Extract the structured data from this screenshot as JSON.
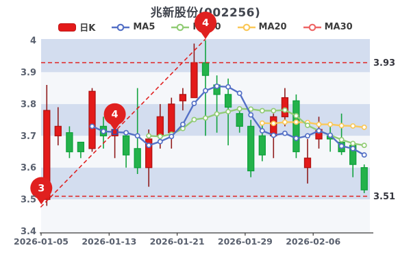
{
  "title": "兆新股份(002256)",
  "legend": {
    "items": [
      {
        "label": "日K",
        "type": "rect",
        "color": "#e31a1a"
      },
      {
        "label": "MA5",
        "type": "line",
        "color": "#5470c6"
      },
      {
        "label": "MA10",
        "type": "line",
        "color": "#91cc75"
      },
      {
        "label": "MA20",
        "type": "line",
        "color": "#fac858"
      },
      {
        "label": "MA30",
        "type": "line",
        "color": "#ee6666"
      }
    ]
  },
  "y_axis": {
    "ticks": [
      {
        "value": 4.0,
        "label": "4"
      },
      {
        "value": 3.9,
        "label": "3.9"
      },
      {
        "value": 3.8,
        "label": "3.8"
      },
      {
        "value": 3.7,
        "label": "3.7"
      },
      {
        "value": 3.6,
        "label": "3.6"
      },
      {
        "value": 3.5,
        "label": "3.5"
      },
      {
        "value": 3.4,
        "label": "3.4"
      }
    ]
  },
  "x_axis": {
    "ticks": [
      {
        "index": 0,
        "label": "2026-01-05"
      },
      {
        "index": 6,
        "label": "2026-01-13"
      },
      {
        "index": 12,
        "label": "2026-01-21"
      },
      {
        "index": 18,
        "label": "2026-01-29"
      },
      {
        "index": 24,
        "label": "2026-02-06"
      }
    ]
  },
  "chart_data": {
    "type": "candlestick",
    "title": "兆新股份(002256)",
    "ylim": [
      3.4,
      4.0
    ],
    "grid": {
      "split_band_values": [
        3.9,
        3.8,
        3.7,
        3.6,
        3.5
      ]
    },
    "dates": [
      "2026-01-05",
      "2026-01-06",
      "2026-01-07",
      "2026-01-08",
      "2026-01-09",
      "2026-01-12",
      "2026-01-13",
      "2026-01-14",
      "2026-01-15",
      "2026-01-16",
      "2026-01-19",
      "2026-01-20",
      "2026-01-21",
      "2026-01-22",
      "2026-01-23",
      "2026-01-26",
      "2026-01-27",
      "2026-01-28",
      "2026-01-29",
      "2026-01-30",
      "2026-02-02",
      "2026-02-03",
      "2026-02-04",
      "2026-02-05",
      "2026-02-06",
      "2026-02-09",
      "2026-02-10",
      "2026-02-11",
      "2026-02-12"
    ],
    "candles": [
      {
        "date": "2026-01-05",
        "open": 3.5,
        "close": 3.78,
        "high": 3.86,
        "low": 3.48,
        "dir": "up"
      },
      {
        "date": "2026-01-06",
        "open": 3.7,
        "close": 3.73,
        "high": 3.79,
        "low": 3.67,
        "dir": "up"
      },
      {
        "date": "2026-01-07",
        "open": 3.71,
        "close": 3.65,
        "high": 3.73,
        "low": 3.63,
        "dir": "down"
      },
      {
        "date": "2026-01-08",
        "open": 3.68,
        "close": 3.65,
        "high": 3.68,
        "low": 3.63,
        "dir": "down"
      },
      {
        "date": "2026-01-09",
        "open": 3.66,
        "close": 3.84,
        "high": 3.85,
        "low": 3.65,
        "dir": "up"
      },
      {
        "date": "2026-01-12",
        "open": 3.73,
        "close": 3.7,
        "high": 3.76,
        "low": 3.66,
        "dir": "down"
      },
      {
        "date": "2026-01-13",
        "open": 3.7,
        "close": 3.72,
        "high": 3.73,
        "low": 3.63,
        "dir": "up"
      },
      {
        "date": "2026-01-14",
        "open": 3.7,
        "close": 3.64,
        "high": 3.7,
        "low": 3.6,
        "dir": "down"
      },
      {
        "date": "2026-01-15",
        "open": 3.66,
        "close": 3.6,
        "high": 3.85,
        "low": 3.58,
        "dir": "down"
      },
      {
        "date": "2026-01-16",
        "open": 3.6,
        "close": 3.69,
        "high": 3.72,
        "low": 3.54,
        "dir": "up"
      },
      {
        "date": "2026-01-19",
        "open": 3.7,
        "close": 3.76,
        "high": 3.8,
        "low": 3.66,
        "dir": "up"
      },
      {
        "date": "2026-01-20",
        "open": 3.71,
        "close": 3.8,
        "high": 3.82,
        "low": 3.66,
        "dir": "up"
      },
      {
        "date": "2026-01-21",
        "open": 3.81,
        "close": 3.83,
        "high": 3.85,
        "low": 3.78,
        "dir": "up"
      },
      {
        "date": "2026-01-22",
        "open": 3.82,
        "close": 3.93,
        "high": 3.99,
        "low": 3.82,
        "dir": "up"
      },
      {
        "date": "2026-01-23",
        "open": 3.93,
        "close": 3.89,
        "high": 4.0,
        "low": 3.7,
        "dir": "down"
      },
      {
        "date": "2026-01-26",
        "open": 3.86,
        "close": 3.83,
        "high": 3.89,
        "low": 3.71,
        "dir": "down"
      },
      {
        "date": "2026-01-27",
        "open": 3.83,
        "close": 3.79,
        "high": 3.88,
        "low": 3.67,
        "dir": "down"
      },
      {
        "date": "2026-01-28",
        "open": 3.77,
        "close": 3.73,
        "high": 3.79,
        "low": 3.71,
        "dir": "down"
      },
      {
        "date": "2026-01-29",
        "open": 3.73,
        "close": 3.59,
        "high": 3.75,
        "low": 3.57,
        "dir": "down"
      },
      {
        "date": "2026-01-30",
        "open": 3.7,
        "close": 3.64,
        "high": 3.74,
        "low": 3.62,
        "dir": "down"
      },
      {
        "date": "2026-02-02",
        "open": 3.7,
        "close": 3.76,
        "high": 3.77,
        "low": 3.63,
        "dir": "up"
      },
      {
        "date": "2026-02-03",
        "open": 3.76,
        "close": 3.82,
        "high": 3.85,
        "low": 3.73,
        "dir": "up"
      },
      {
        "date": "2026-02-04",
        "open": 3.81,
        "close": 3.65,
        "high": 3.83,
        "low": 3.63,
        "dir": "down"
      },
      {
        "date": "2026-02-05",
        "open": 3.6,
        "close": 3.63,
        "high": 3.69,
        "low": 3.55,
        "dir": "up"
      },
      {
        "date": "2026-02-06",
        "open": 3.69,
        "close": 3.72,
        "high": 3.76,
        "low": 3.66,
        "dir": "up"
      },
      {
        "date": "2026-02-09",
        "open": 3.7,
        "close": 3.69,
        "high": 3.74,
        "low": 3.65,
        "dir": "down"
      },
      {
        "date": "2026-02-10",
        "open": 3.68,
        "close": 3.65,
        "high": 3.77,
        "low": 3.64,
        "dir": "down"
      },
      {
        "date": "2026-02-11",
        "open": 3.67,
        "close": 3.61,
        "high": 3.68,
        "low": 3.57,
        "dir": "down"
      },
      {
        "date": "2026-02-12",
        "open": 3.6,
        "close": 3.53,
        "high": 3.61,
        "low": 3.52,
        "dir": "down"
      }
    ],
    "series": [
      {
        "name": "MA5",
        "color": "#5470c6",
        "start_index": 4,
        "values": [
          3.73,
          3.714,
          3.712,
          3.71,
          3.7,
          3.67,
          3.682,
          3.698,
          3.736,
          3.802,
          3.842,
          3.856,
          3.854,
          3.834,
          3.766,
          3.716,
          3.702,
          3.708,
          3.692,
          3.7,
          3.716,
          3.702,
          3.668,
          3.66,
          3.64
        ]
      },
      {
        "name": "MA10",
        "color": "#91cc75",
        "start_index": 9,
        "values": [
          3.7,
          3.698,
          3.705,
          3.723,
          3.751,
          3.756,
          3.769,
          3.776,
          3.785,
          3.784,
          3.779,
          3.779,
          3.781,
          3.763,
          3.733,
          3.716,
          3.702,
          3.688,
          3.676,
          3.67
        ]
      },
      {
        "name": "MA20",
        "color": "#fac858",
        "start_index": 19,
        "values": [
          3.74,
          3.739,
          3.743,
          3.743,
          3.742,
          3.736,
          3.736,
          3.732,
          3.731,
          3.727
        ]
      },
      {
        "name": "MA30",
        "color": "#ee6666",
        "start_index": null,
        "values": []
      }
    ],
    "reference_lines": [
      {
        "value": 3.93,
        "label": "3.93"
      },
      {
        "value": 3.51,
        "label": "3.51"
      }
    ],
    "trend_line": {
      "from": {
        "index": 0,
        "value": 3.48
      },
      "to": {
        "index": 14,
        "value": 4.0
      }
    },
    "balloon_markers": [
      {
        "text": "3",
        "index": 0,
        "value": 3.48,
        "dx": -8
      },
      {
        "text": "4",
        "index": 6,
        "value": 3.712,
        "dx": 0
      },
      {
        "text": "4",
        "index": 14,
        "value": 4.0,
        "dx": 0
      }
    ],
    "ma5_highlight_index": 6,
    "colors": {
      "up": "#e31a1a",
      "up_border": "#b01212",
      "up_wick": "#8f1a1a",
      "down": "#24b24b",
      "down_border": "#0fa03b",
      "down_wick": "#12a33e",
      "band_blue": "#d3ddef",
      "band_white": "#f5f7fa",
      "dashed": "#e0201f",
      "balloon": "#e0201f",
      "axis_label": "#59606e",
      "axis_line": "#3a3a3a"
    }
  }
}
